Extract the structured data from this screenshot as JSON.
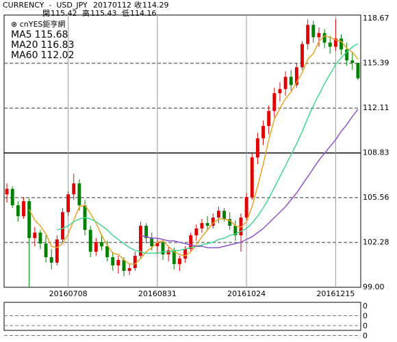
{
  "header": {
    "symbol": "CURRENCY  -  USD_JPY",
    "date": "20170112",
    "close_label": "收",
    "open_label": "開",
    "high_label": "高",
    "low_label": "低",
    "brand": "⊗ cnYES鉅亨網"
  },
  "chart_data": {
    "type": "candlestick",
    "categories": [
      null,
      null,
      null,
      null,
      null,
      null,
      null,
      null,
      null,
      null,
      null,
      "20160708",
      null,
      null,
      null,
      null,
      null,
      null,
      null,
      null,
      null,
      null,
      null,
      null,
      null,
      null,
      null,
      "20160831",
      null,
      null,
      null,
      null,
      null,
      null,
      null,
      null,
      null,
      null,
      null,
      null,
      null,
      null,
      null,
      "20161024",
      null,
      null,
      null,
      null,
      null,
      null,
      null,
      null,
      null,
      null,
      null,
      null,
      null,
      null,
      null,
      "20161215",
      null,
      null,
      null,
      null
    ],
    "open": [
      105.8,
      106.2,
      105.0,
      104.2,
      105.3,
      102.6,
      103.0,
      102.2,
      101.2,
      100.8,
      102.5,
      104.5,
      105.8,
      106.6,
      105.0,
      103.2,
      101.6,
      102.3,
      102.0,
      101.2,
      100.6,
      101.0,
      100.2,
      100.4,
      101.3,
      103.5,
      102.6,
      102.0,
      102.3,
      101.4,
      101.7,
      100.7,
      101.1,
      101.8,
      102.8,
      103.3,
      103.7,
      103.5,
      104.1,
      104.6,
      104.0,
      103.5,
      102.8,
      104.1,
      105.6,
      108.5,
      109.9,
      110.8,
      111.9,
      113.2,
      113.5,
      114.4,
      113.8,
      115.1,
      116.8,
      118.2,
      117.3,
      117.6,
      116.9,
      116.6,
      117.2,
      116.4,
      115.6,
      115.42
    ],
    "high": [
      106.6,
      106.4,
      105.3,
      105.6,
      105.5,
      103.4,
      103.2,
      102.8,
      101.8,
      102.8,
      104.8,
      106.0,
      107.3,
      106.9,
      105.4,
      103.5,
      102.6,
      102.9,
      102.4,
      101.6,
      101.3,
      101.2,
      100.7,
      101.6,
      103.8,
      103.7,
      103.0,
      102.6,
      102.5,
      102.0,
      101.9,
      101.3,
      102.0,
      103.0,
      103.6,
      104.0,
      104.2,
      104.4,
      104.9,
      104.8,
      104.5,
      103.9,
      104.4,
      105.9,
      108.8,
      110.3,
      111.2,
      112.3,
      113.6,
      114.0,
      114.8,
      114.9,
      115.4,
      117.0,
      118.6,
      118.5,
      118.0,
      117.9,
      117.4,
      118.6,
      117.5,
      116.9,
      116.2,
      115.43
    ],
    "low": [
      105.2,
      104.8,
      103.8,
      104.0,
      99.0,
      102.0,
      101.8,
      100.8,
      100.3,
      100.6,
      102.3,
      104.2,
      105.4,
      104.6,
      102.8,
      101.2,
      101.3,
      101.7,
      100.9,
      100.2,
      100.0,
      99.8,
      99.9,
      100.2,
      101.1,
      102.2,
      101.7,
      101.4,
      101.0,
      100.9,
      100.3,
      100.2,
      100.8,
      101.6,
      102.4,
      103.0,
      103.2,
      103.3,
      103.7,
      103.8,
      103.2,
      102.4,
      101.6,
      103.9,
      105.4,
      108.0,
      109.4,
      110.2,
      111.4,
      112.6,
      113.0,
      113.4,
      113.6,
      114.9,
      116.4,
      116.9,
      116.6,
      116.5,
      116.1,
      116.3,
      116.0,
      115.2,
      114.9,
      114.16
    ],
    "close": [
      106.2,
      105.0,
      104.2,
      105.3,
      102.6,
      103.0,
      102.2,
      101.2,
      100.8,
      102.5,
      104.5,
      105.8,
      106.6,
      105.0,
      103.2,
      101.6,
      102.3,
      102.0,
      101.2,
      100.6,
      101.0,
      100.2,
      100.4,
      101.3,
      103.5,
      102.6,
      102.0,
      102.3,
      101.4,
      101.7,
      100.7,
      101.1,
      101.8,
      102.8,
      103.3,
      103.7,
      103.5,
      104.1,
      104.6,
      104.0,
      103.5,
      102.8,
      104.1,
      105.6,
      108.5,
      109.9,
      110.8,
      111.9,
      113.2,
      113.5,
      114.4,
      113.8,
      115.1,
      116.8,
      118.2,
      117.3,
      117.6,
      116.9,
      116.6,
      117.2,
      116.4,
      115.6,
      115.42,
      114.29
    ],
    "up_color": "#e00000",
    "down_color": "#008000",
    "series": [
      {
        "name": "MA5",
        "color": "#f0a020",
        "values": [
          null,
          null,
          null,
          null,
          104.7,
          103.9,
          103.5,
          102.9,
          102.0,
          101.9,
          102.2,
          102.9,
          103.9,
          104.9,
          105.0,
          104.4,
          103.7,
          102.8,
          102.1,
          101.5,
          101.4,
          101.0,
          100.7,
          100.7,
          101.1,
          101.6,
          101.9,
          102.3,
          102.4,
          102.0,
          101.6,
          101.4,
          101.3,
          101.6,
          102.1,
          102.7,
          103.2,
          103.7,
          104.0,
          104.0,
          103.9,
          103.5,
          103.4,
          103.8,
          104.9,
          106.4,
          108.0,
          109.8,
          111.3,
          112.1,
          112.8,
          113.3,
          114.0,
          114.7,
          115.7,
          116.1,
          117.0,
          117.4,
          117.3,
          117.1,
          117.0,
          116.5,
          116.2,
          115.68
        ]
      },
      {
        "name": "MA20",
        "color": "#40d890",
        "values": [
          null,
          null,
          null,
          null,
          null,
          null,
          null,
          null,
          null,
          103.2,
          103.3,
          103.5,
          103.8,
          104.0,
          104.1,
          104.0,
          103.8,
          103.5,
          103.2,
          102.8,
          102.5,
          102.2,
          101.9,
          101.7,
          101.6,
          101.5,
          101.5,
          101.5,
          101.6,
          101.6,
          101.7,
          101.7,
          101.8,
          101.9,
          102.0,
          102.1,
          102.2,
          102.3,
          102.5,
          102.6,
          102.8,
          102.9,
          103.1,
          103.3,
          103.7,
          104.2,
          104.8,
          105.5,
          106.3,
          107.1,
          107.9,
          108.7,
          109.5,
          110.4,
          111.4,
          112.3,
          113.1,
          113.9,
          114.6,
          115.3,
          115.8,
          116.2,
          116.6,
          116.83
        ]
      },
      {
        "name": "MA60",
        "color": "#9050d0",
        "values": [
          null,
          null,
          null,
          null,
          null,
          null,
          null,
          null,
          null,
          null,
          null,
          null,
          null,
          null,
          null,
          null,
          null,
          null,
          null,
          null,
          null,
          null,
          null,
          null,
          102.8,
          102.7,
          102.6,
          102.6,
          102.5,
          102.4,
          102.4,
          102.3,
          102.2,
          102.1,
          102.0,
          102.0,
          101.9,
          101.9,
          101.9,
          102.0,
          102.1,
          102.2,
          102.3,
          102.5,
          102.7,
          103.0,
          103.3,
          103.7,
          104.1,
          104.5,
          104.9,
          105.4,
          105.9,
          106.5,
          107.1,
          107.7,
          108.3,
          108.8,
          109.3,
          109.8,
          110.4,
          110.9,
          111.5,
          112.02
        ]
      }
    ],
    "ylim": [
      99.0,
      118.67
    ],
    "yticks": [
      {
        "value": 99.0,
        "label": "99.00"
      },
      {
        "value": 102.28,
        "label": "102.28"
      },
      {
        "value": 105.56,
        "label": "105.56"
      },
      {
        "value": 108.83,
        "label": "108.83"
      },
      {
        "value": 112.11,
        "label": "112.11"
      },
      {
        "value": 115.39,
        "label": "115.39"
      },
      {
        "value": 118.67,
        "label": "118.67"
      }
    ],
    "sub_yticks": [
      0,
      0,
      0,
      0
    ]
  }
}
